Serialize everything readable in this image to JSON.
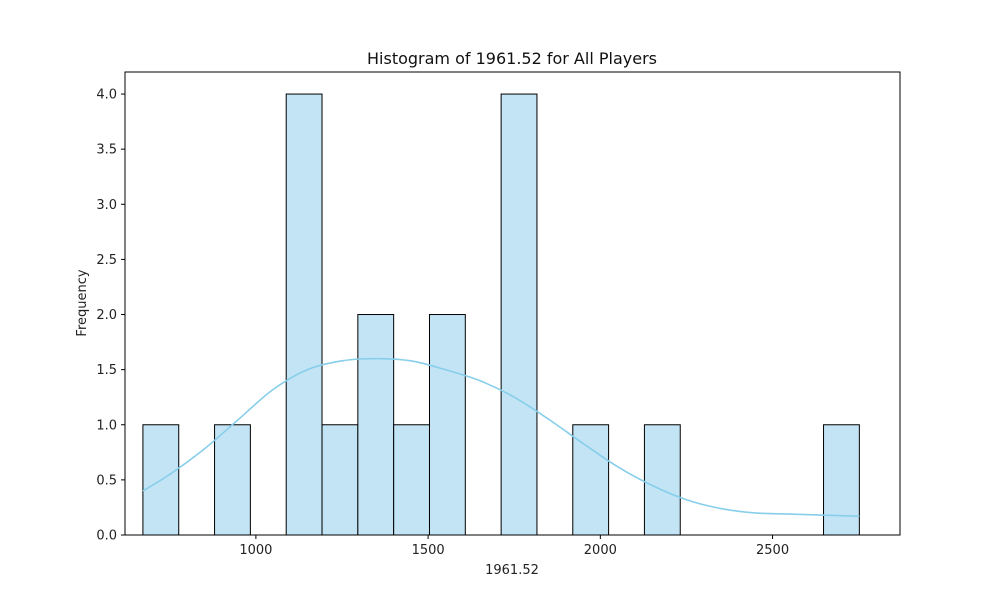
{
  "chart_data": {
    "type": "bar",
    "title": "Histogram of 1961.52 for All Players",
    "xlabel": "1961.52",
    "ylabel": "Frequency",
    "xlim": [
      620,
      2870
    ],
    "ylim": [
      0,
      4.2
    ],
    "xticks": [
      1000,
      1500,
      2000,
      2500
    ],
    "yticks": [
      0.0,
      0.5,
      1.0,
      1.5,
      2.0,
      2.5,
      3.0,
      3.5,
      4.0
    ],
    "bins": [
      {
        "x0": 672,
        "x1": 776,
        "value": 1
      },
      {
        "x0": 776,
        "x1": 880,
        "value": 0
      },
      {
        "x0": 880,
        "x1": 984,
        "value": 1
      },
      {
        "x0": 984,
        "x1": 1088,
        "value": 0
      },
      {
        "x0": 1088,
        "x1": 1192,
        "value": 4
      },
      {
        "x0": 1192,
        "x1": 1296,
        "value": 1
      },
      {
        "x0": 1296,
        "x1": 1400,
        "value": 2
      },
      {
        "x0": 1400,
        "x1": 1504,
        "value": 1
      },
      {
        "x0": 1504,
        "x1": 1608,
        "value": 2
      },
      {
        "x0": 1608,
        "x1": 1712,
        "value": 0
      },
      {
        "x0": 1712,
        "x1": 1816,
        "value": 4
      },
      {
        "x0": 1816,
        "x1": 1920,
        "value": 0
      },
      {
        "x0": 1920,
        "x1": 2024,
        "value": 1
      },
      {
        "x0": 2024,
        "x1": 2128,
        "value": 0
      },
      {
        "x0": 2128,
        "x1": 2232,
        "value": 1
      },
      {
        "x0": 2232,
        "x1": 2336,
        "value": 0
      },
      {
        "x0": 2336,
        "x1": 2440,
        "value": 0
      },
      {
        "x0": 2440,
        "x1": 2544,
        "value": 0
      },
      {
        "x0": 2544,
        "x1": 2648,
        "value": 0
      },
      {
        "x0": 2648,
        "x1": 2752,
        "value": 1
      }
    ],
    "kde": {
      "x": [
        672,
        750,
        850,
        950,
        1050,
        1150,
        1250,
        1350,
        1450,
        1550,
        1650,
        1750,
        1850,
        1950,
        2050,
        2150,
        2250,
        2350,
        2450,
        2550,
        2650,
        2752
      ],
      "y": [
        0.4,
        0.55,
        0.78,
        1.05,
        1.32,
        1.5,
        1.58,
        1.6,
        1.58,
        1.5,
        1.4,
        1.25,
        1.05,
        0.83,
        0.62,
        0.45,
        0.32,
        0.24,
        0.2,
        0.19,
        0.18,
        0.17
      ]
    },
    "colors": {
      "bar_fill": "#c3e4f4",
      "bar_edge": "#000000",
      "kde_line": "#87ceeb"
    },
    "grid": false,
    "legend": "none"
  }
}
